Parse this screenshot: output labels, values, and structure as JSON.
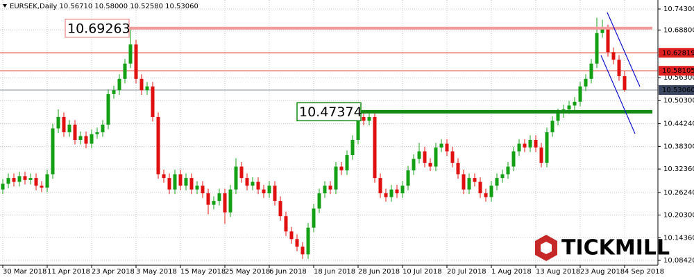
{
  "chart_data": {
    "type": "candlestick",
    "title": "EURSEK,Daily  10.56710 10.58000 10.52580 10.53060",
    "categories": [
      "30 Mar 2018",
      null,
      null,
      null,
      null,
      null,
      null,
      null,
      "11 Apr 2018",
      null,
      null,
      null,
      null,
      null,
      null,
      null,
      "23 Apr 2018",
      null,
      null,
      null,
      null,
      null,
      null,
      null,
      "3 May 2018",
      null,
      null,
      null,
      null,
      null,
      null,
      null,
      "15 May 2018",
      null,
      null,
      null,
      null,
      null,
      null,
      null,
      "25 May 2018",
      null,
      null,
      null,
      null,
      null,
      null,
      null,
      "6 Jun 2018",
      null,
      null,
      null,
      null,
      null,
      null,
      null,
      "18 Jun 2018",
      null,
      null,
      null,
      null,
      null,
      null,
      null,
      "28 Jun 2018",
      null,
      null,
      null,
      null,
      null,
      null,
      null,
      "10 Jul 2018",
      null,
      null,
      null,
      null,
      null,
      null,
      null,
      "20 Jul 2018",
      null,
      null,
      null,
      null,
      null,
      null,
      null,
      "1 Aug 2018",
      null,
      null,
      null,
      null,
      null,
      null,
      null,
      "13 Aug 2018",
      null,
      null,
      null,
      null,
      null,
      null,
      null,
      "23 Aug 2018",
      null,
      null,
      null,
      null,
      null,
      null,
      null,
      "4 Sep 2018"
    ],
    "open": [
      10.27,
      10.285,
      10.3,
      10.29,
      10.305,
      10.295,
      10.3,
      10.28,
      10.275,
      10.31,
      10.43,
      10.46,
      10.42,
      10.44,
      10.4,
      10.41,
      10.39,
      10.415,
      10.42,
      10.44,
      10.52,
      10.53,
      10.56,
      10.6,
      10.65,
      10.56,
      10.53,
      10.54,
      10.46,
      10.31,
      10.3,
      10.27,
      10.31,
      10.28,
      10.3,
      10.27,
      10.28,
      10.26,
      10.23,
      10.24,
      10.26,
      10.21,
      10.27,
      10.33,
      10.3,
      10.28,
      10.29,
      10.27,
      10.26,
      10.28,
      10.24,
      10.2,
      10.16,
      10.14,
      10.12,
      10.1,
      10.17,
      10.22,
      10.26,
      10.28,
      10.27,
      10.33,
      10.32,
      10.36,
      10.4,
      10.46,
      10.45,
      10.46,
      10.3,
      10.26,
      10.25,
      10.27,
      10.26,
      10.28,
      10.32,
      10.35,
      10.37,
      10.34,
      10.33,
      10.38,
      10.39,
      10.37,
      10.34,
      10.31,
      10.27,
      10.3,
      10.29,
      10.26,
      10.25,
      10.28,
      10.3,
      10.31,
      10.33,
      10.37,
      10.39,
      10.38,
      10.4,
      10.38,
      10.34,
      10.42,
      10.45,
      10.47,
      10.48,
      10.49,
      10.5,
      10.54,
      10.56,
      10.6,
      10.68,
      10.69,
      10.63,
      10.61,
      10.5671
    ],
    "high": [
      10.297,
      10.312,
      10.312,
      10.317,
      10.317,
      10.312,
      10.312,
      10.292,
      10.322,
      10.442,
      10.48,
      10.472,
      10.452,
      10.452,
      10.422,
      10.422,
      10.427,
      10.432,
      10.452,
      10.532,
      10.542,
      10.572,
      10.612,
      10.6926,
      10.662,
      10.572,
      10.552,
      10.552,
      10.472,
      10.322,
      10.312,
      10.322,
      10.322,
      10.312,
      10.312,
      10.292,
      10.292,
      10.272,
      10.252,
      10.272,
      10.272,
      10.282,
      10.352,
      10.342,
      10.312,
      10.302,
      10.302,
      10.282,
      10.292,
      10.292,
      10.252,
      10.212,
      10.172,
      10.152,
      10.132,
      10.182,
      10.232,
      10.272,
      10.292,
      10.292,
      10.342,
      10.342,
      10.372,
      10.412,
      10.474,
      10.472,
      10.472,
      10.472,
      10.312,
      10.272,
      10.282,
      10.282,
      10.292,
      10.332,
      10.362,
      10.392,
      10.382,
      10.352,
      10.392,
      10.402,
      10.402,
      10.382,
      10.352,
      10.322,
      10.312,
      10.312,
      10.302,
      10.272,
      10.292,
      10.312,
      10.322,
      10.342,
      10.382,
      10.402,
      10.402,
      10.412,
      10.412,
      10.392,
      10.432,
      10.462,
      10.482,
      10.492,
      10.502,
      10.512,
      10.552,
      10.572,
      10.612,
      10.72,
      10.715,
      10.702,
      10.642,
      10.622,
      10.58
    ],
    "low": [
      10.258,
      10.273,
      10.278,
      10.278,
      10.283,
      10.283,
      10.268,
      10.263,
      10.263,
      10.298,
      10.418,
      10.408,
      10.408,
      10.388,
      10.388,
      10.378,
      10.378,
      10.403,
      10.408,
      10.428,
      10.508,
      10.518,
      10.548,
      10.588,
      10.548,
      10.518,
      10.518,
      10.448,
      10.298,
      10.288,
      10.258,
      10.258,
      10.268,
      10.268,
      10.258,
      10.258,
      10.248,
      10.205,
      10.218,
      10.228,
      10.18,
      10.198,
      10.258,
      10.288,
      10.268,
      10.268,
      10.258,
      10.248,
      10.248,
      10.228,
      10.188,
      10.148,
      10.128,
      10.108,
      10.088,
      10.088,
      10.158,
      10.208,
      10.248,
      10.258,
      10.258,
      10.308,
      10.308,
      10.348,
      10.388,
      10.438,
      10.438,
      10.288,
      10.248,
      10.238,
      10.238,
      10.248,
      10.248,
      10.268,
      10.308,
      10.338,
      10.328,
      10.318,
      10.318,
      10.368,
      10.358,
      10.328,
      10.298,
      10.258,
      10.258,
      10.278,
      10.248,
      10.238,
      10.238,
      10.268,
      10.288,
      10.298,
      10.318,
      10.358,
      10.368,
      10.368,
      10.368,
      10.328,
      10.328,
      10.408,
      10.438,
      10.458,
      10.468,
      10.478,
      10.488,
      10.528,
      10.548,
      10.588,
      10.668,
      10.618,
      10.598,
      10.555,
      10.5258
    ],
    "close": [
      10.285,
      10.3,
      10.29,
      10.305,
      10.295,
      10.3,
      10.28,
      10.275,
      10.31,
      10.43,
      10.46,
      10.42,
      10.44,
      10.4,
      10.41,
      10.39,
      10.415,
      10.42,
      10.44,
      10.52,
      10.53,
      10.56,
      10.6,
      10.65,
      10.56,
      10.53,
      10.54,
      10.46,
      10.31,
      10.3,
      10.27,
      10.31,
      10.28,
      10.3,
      10.27,
      10.28,
      10.26,
      10.23,
      10.24,
      10.26,
      10.21,
      10.27,
      10.33,
      10.3,
      10.28,
      10.29,
      10.27,
      10.26,
      10.28,
      10.24,
      10.2,
      10.16,
      10.14,
      10.12,
      10.1,
      10.17,
      10.22,
      10.26,
      10.28,
      10.27,
      10.33,
      10.32,
      10.36,
      10.4,
      10.46,
      10.45,
      10.46,
      10.3,
      10.26,
      10.25,
      10.27,
      10.26,
      10.28,
      10.32,
      10.35,
      10.37,
      10.34,
      10.33,
      10.38,
      10.39,
      10.37,
      10.34,
      10.31,
      10.27,
      10.3,
      10.29,
      10.26,
      10.25,
      10.28,
      10.3,
      10.31,
      10.33,
      10.37,
      10.39,
      10.38,
      10.4,
      10.38,
      10.34,
      10.42,
      10.45,
      10.47,
      10.48,
      10.49,
      10.5,
      10.54,
      10.56,
      10.6,
      10.68,
      10.69,
      10.63,
      10.61,
      10.5671,
      10.5306
    ],
    "up_color": "#14a014",
    "down_color": "#e01010",
    "ylim": [
      10.0715,
      10.7666
    ],
    "yticks": [
      {
        "value": 10.743,
        "label": "10.74300"
      },
      {
        "value": 10.688,
        "label": "10.68800"
      },
      {
        "value": 10.563,
        "label": "10.56300"
      },
      {
        "value": 10.503,
        "label": "10.50300"
      },
      {
        "value": 10.4424,
        "label": "10.44240"
      },
      {
        "value": 10.383,
        "label": "10.38300"
      },
      {
        "value": 10.3236,
        "label": "10.32360"
      },
      {
        "value": 10.2624,
        "label": "10.26240"
      },
      {
        "value": 10.203,
        "label": "10.20300"
      },
      {
        "value": 10.1436,
        "label": "10.14360"
      },
      {
        "value": 10.0842,
        "label": "10.08420"
      }
    ],
    "grid": true,
    "annotation_levels": [
      {
        "value": 10.69263,
        "color": "#f29b9b"
      },
      {
        "value": 10.47374,
        "color": "#138a13"
      }
    ],
    "axis_levels": [
      {
        "value": 10.62819,
        "color": "#e02020"
      },
      {
        "value": 10.58105,
        "color": "#e02020"
      },
      {
        "value": 10.5306,
        "label": "10.53060",
        "color": "#3a4560"
      }
    ],
    "logo": "TICKMILL"
  }
}
